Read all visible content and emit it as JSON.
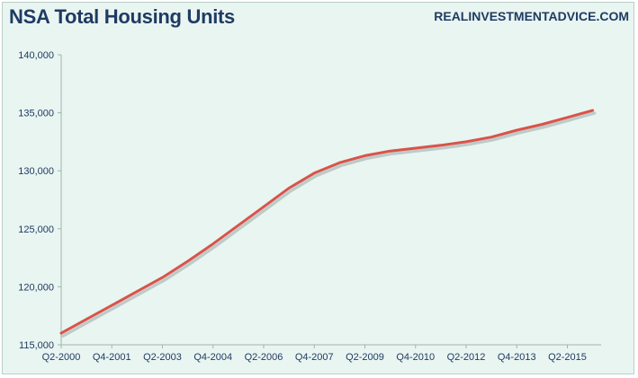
{
  "header": {
    "title": "NSA Total Housing Units",
    "source": "REALINVESTMENTADVICE.COM"
  },
  "colors": {
    "background": "#e9f5f1",
    "line": "#d9534a",
    "shadow": "#9aa8a6",
    "text": "#1f3b63",
    "axis": "#9fb5b0"
  },
  "chart_data": {
    "type": "line",
    "title": "NSA Total Housing Units",
    "xlabel": "",
    "ylabel": "",
    "ylim": [
      115000,
      140000
    ],
    "yticks": [
      115000,
      120000,
      125000,
      130000,
      135000,
      140000
    ],
    "ytick_labels": [
      "115,000",
      "120,000",
      "125,000",
      "130,000",
      "135,000",
      "140,000"
    ],
    "xlim": [
      2000.25,
      2016.25
    ],
    "xtick_labels": [
      "Q2-2000",
      "Q4-2001",
      "Q2-2003",
      "Q4-2004",
      "Q2-2006",
      "Q4-2007",
      "Q2-2009",
      "Q4-2010",
      "Q2-2012",
      "Q4-2013",
      "Q2-2015"
    ],
    "xticks": [
      2000.25,
      2001.75,
      2003.25,
      2004.75,
      2006.25,
      2007.75,
      2009.25,
      2010.75,
      2012.25,
      2013.75,
      2015.25
    ],
    "grid": false,
    "series": [
      {
        "x": [
          2000.25,
          2001.0,
          2001.75,
          2002.5,
          2003.25,
          2004.0,
          2004.75,
          2005.5,
          2006.25,
          2007.0,
          2007.75,
          2008.5,
          2009.25,
          2010.0,
          2010.75,
          2011.5,
          2012.25,
          2013.0,
          2013.75,
          2014.5,
          2015.25,
          2016.0
        ],
        "values": [
          116000,
          117200,
          118400,
          119600,
          120800,
          122200,
          123700,
          125300,
          126900,
          128500,
          129800,
          130700,
          131300,
          131700,
          131950,
          132200,
          132500,
          132900,
          133500,
          134000,
          134600,
          135200
        ]
      }
    ]
  }
}
